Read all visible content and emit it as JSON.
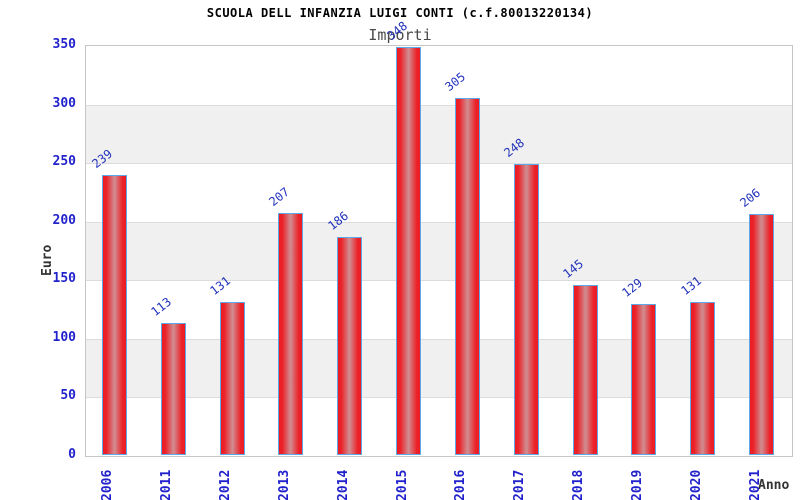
{
  "page": {
    "title": "SCUOLA DELL INFANZIA LUIGI CONTI (c.f.80013220134)",
    "subtitle": "Importi"
  },
  "chart_data": {
    "type": "bar",
    "title": "SCUOLA DELL INFANZIA LUIGI CONTI (c.f.80013220134)",
    "subtitle": "Importi",
    "xlabel": "Anno",
    "ylabel": "Euro",
    "categories": [
      "2006",
      "2011",
      "2012",
      "2013",
      "2014",
      "2015",
      "2016",
      "2017",
      "2018",
      "2019",
      "2020",
      "2021"
    ],
    "values": [
      239,
      113,
      131,
      207,
      186,
      348,
      305,
      248,
      145,
      129,
      131,
      206
    ],
    "ylim": [
      0,
      350
    ],
    "yticks": [
      0,
      50,
      100,
      150,
      200,
      250,
      300,
      350
    ],
    "grid": "horizontal alternating bands with gridlines every 50",
    "legend": "none",
    "bar_labels_rotated": true,
    "x_labels_rotated": true
  },
  "colors": {
    "bar_edge": "#ed1c24",
    "bar_center": "#cf8e92",
    "bar_border": "#5ca8e8",
    "tick_label_blue": "#2222cc",
    "value_label_blue": "#2233bb",
    "band_gray": "#f0f0f0",
    "band_white": "#ffffff",
    "grid_line": "#dcdcdc",
    "plot_border": "#c6c6c6",
    "title_color": "#000000",
    "subtitle_color": "#4a4a4a",
    "axis_title_color": "#333333"
  }
}
